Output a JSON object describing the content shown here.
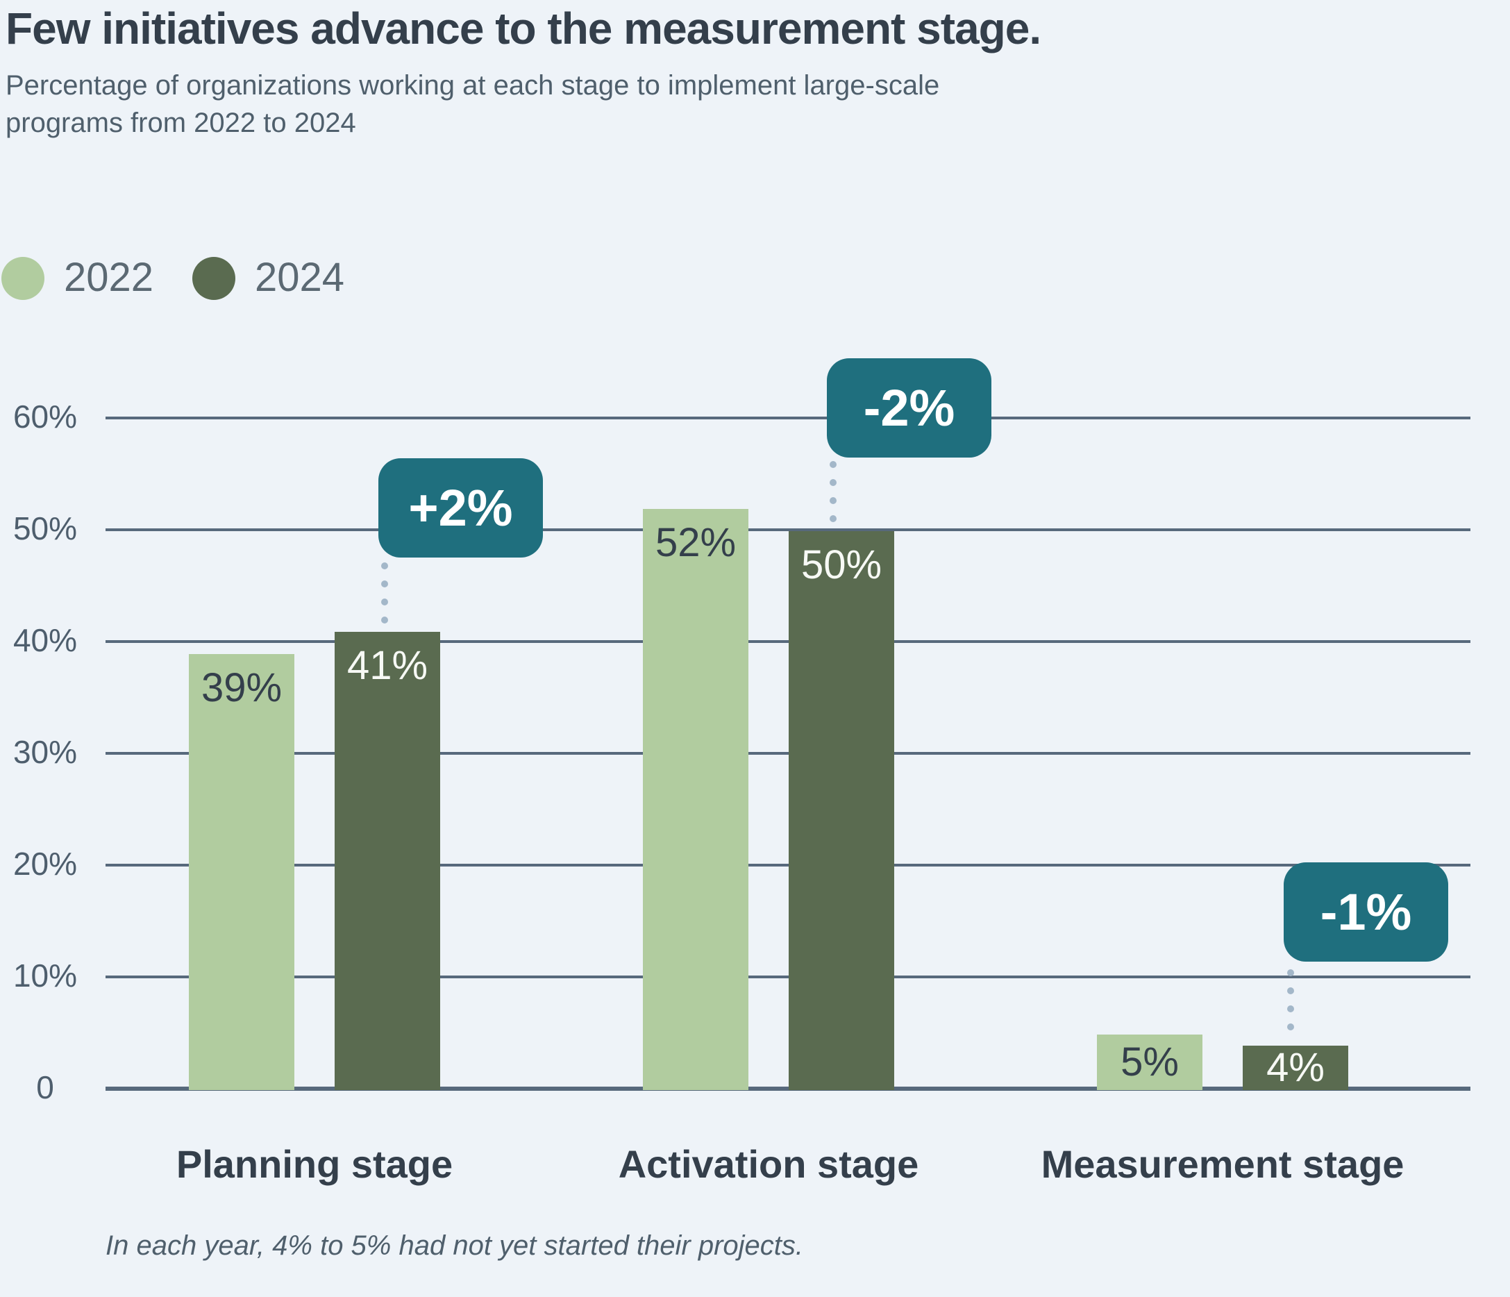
{
  "header": {
    "title": "Few initiatives advance to the measurement stage.",
    "subtitle": "Percentage of organizations working at each stage to implement large-scale programs from 2022 to 2024"
  },
  "legend": {
    "items": [
      {
        "label": "2022",
        "color": "#b1cc9f"
      },
      {
        "label": "2024",
        "color": "#5a6b50"
      }
    ]
  },
  "chart_data": {
    "type": "bar",
    "categories": [
      "Planning stage",
      "Activation stage",
      "Measurement stage"
    ],
    "series": [
      {
        "name": "2022",
        "color": "#b1cc9f",
        "values": [
          39,
          52,
          5
        ],
        "labels": [
          "39%",
          "52%",
          "5%"
        ]
      },
      {
        "name": "2024",
        "color": "#5a6b50",
        "values": [
          41,
          50,
          4
        ],
        "labels": [
          "41%",
          "50%",
          "4%"
        ]
      }
    ],
    "deltas": {
      "values": [
        2,
        -2,
        -1
      ],
      "labels": [
        "+2%",
        "-2%",
        "-1%"
      ],
      "badge_color": "#1f6f7e"
    },
    "yticks": [
      "60%",
      "50%",
      "40%",
      "30%",
      "20%",
      "10%",
      "0"
    ],
    "ylabel": "",
    "xlabel": "",
    "ylim": [
      0,
      65
    ],
    "grid": true,
    "gridline_color": "#57697c",
    "background_color": "#eef3f8",
    "legend_position": "top-left"
  },
  "footnote": "In each year, 4% to 5% had not yet started their projects."
}
